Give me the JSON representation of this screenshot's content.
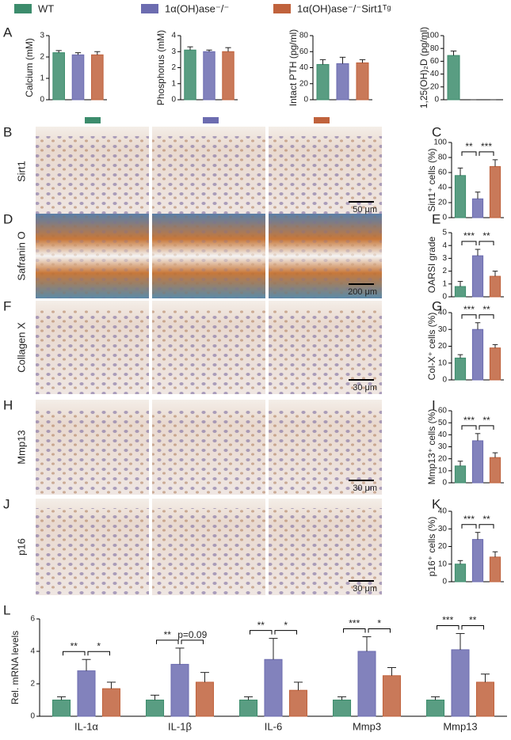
{
  "legend": [
    {
      "name": "WT",
      "color": "#3c8c6c"
    },
    {
      "name": "1α(OH)ase⁻/⁻",
      "color": "#6c6cb0"
    },
    {
      "name": "1α(OH)ase⁻/⁻Sirt1ᵀᵍ",
      "color": "#c0623c"
    }
  ],
  "panels": [
    "A",
    "B",
    "C",
    "D",
    "E",
    "F",
    "G",
    "H",
    "I",
    "J",
    "K",
    "L"
  ],
  "image_rows": [
    {
      "label": "Sirt1",
      "scale": "50 μm"
    },
    {
      "label": "Safranin O",
      "scale": "200 μm"
    },
    {
      "label": "Collagen X",
      "scale": "30 μm"
    },
    {
      "label": "Mmp13",
      "scale": "30 μm"
    },
    {
      "label": "p16",
      "scale": "30 μm"
    }
  ],
  "chart_data": [
    {
      "type": "bar",
      "ylabel": "Calcium (mM)",
      "ylim": [
        0,
        3
      ],
      "yticks": [
        0,
        1,
        2,
        3
      ],
      "colors": [
        "#3c8c6c",
        "#6c6cb0",
        "#c0623c"
      ],
      "values": [
        2.2,
        2.1,
        2.1
      ],
      "errors": [
        0.1,
        0.1,
        0.15
      ]
    },
    {
      "type": "bar",
      "ylabel": "Phosphorus (mM)",
      "ylim": [
        0,
        4
      ],
      "yticks": [
        0,
        1,
        2,
        3,
        4
      ],
      "colors": [
        "#3c8c6c",
        "#6c6cb0",
        "#c0623c"
      ],
      "values": [
        3.1,
        3.0,
        3.0
      ],
      "errors": [
        0.2,
        0.1,
        0.25
      ]
    },
    {
      "type": "bar",
      "ylabel": "Intact PTH (pg/ml)",
      "ylim": [
        0,
        80
      ],
      "yticks": [
        0,
        20,
        40,
        60,
        80
      ],
      "colors": [
        "#3c8c6c",
        "#6c6cb0",
        "#c0623c"
      ],
      "values": [
        44,
        45,
        46
      ],
      "errors": [
        6,
        8,
        4
      ]
    },
    {
      "type": "bar",
      "ylabel": "1,25(OH)₂D (pg/ml)",
      "ylim": [
        0,
        100
      ],
      "yticks": [
        0,
        20,
        40,
        60,
        80,
        100
      ],
      "colors": [
        "#3c8c6c",
        "#6c6cb0",
        "#c0623c"
      ],
      "values": [
        69,
        0,
        0
      ],
      "errors": [
        7,
        0,
        0
      ]
    },
    {
      "type": "bar",
      "ylabel": "Sirt1⁺ cells (%)",
      "ylim": [
        0,
        100
      ],
      "yticks": [
        0,
        20,
        40,
        60,
        80,
        100
      ],
      "colors": [
        "#3c8c6c",
        "#6c6cb0",
        "#c0623c"
      ],
      "values": [
        56,
        25,
        68
      ],
      "errors": [
        10,
        9,
        9
      ],
      "significance": [
        "**",
        "***"
      ]
    },
    {
      "type": "bar",
      "ylabel": "OARSI grade",
      "ylim": [
        0,
        5
      ],
      "yticks": [
        0,
        1,
        2,
        3,
        4,
        5
      ],
      "colors": [
        "#3c8c6c",
        "#6c6cb0",
        "#c0623c"
      ],
      "values": [
        0.8,
        3.2,
        1.6
      ],
      "errors": [
        0.4,
        0.5,
        0.4
      ],
      "significance": [
        "***",
        "**"
      ]
    },
    {
      "type": "bar",
      "ylabel": "Col-X⁺ cells (%)",
      "ylim": [
        0,
        40
      ],
      "yticks": [
        0,
        10,
        20,
        30,
        40
      ],
      "colors": [
        "#3c8c6c",
        "#6c6cb0",
        "#c0623c"
      ],
      "values": [
        13,
        30,
        19
      ],
      "errors": [
        2,
        4,
        2
      ],
      "significance": [
        "***",
        "**"
      ]
    },
    {
      "type": "bar",
      "ylabel": "Mmp13⁺ cells (%)",
      "ylim": [
        0,
        60
      ],
      "yticks": [
        0,
        10,
        20,
        30,
        40,
        50,
        60
      ],
      "colors": [
        "#3c8c6c",
        "#6c6cb0",
        "#c0623c"
      ],
      "values": [
        14,
        35,
        21
      ],
      "errors": [
        4,
        6,
        4
      ],
      "significance": [
        "***",
        "**"
      ]
    },
    {
      "type": "bar",
      "ylabel": "p16⁺ cells (%)",
      "ylim": [
        0,
        40
      ],
      "yticks": [
        0,
        10,
        20,
        30,
        40
      ],
      "colors": [
        "#3c8c6c",
        "#6c6cb0",
        "#c0623c"
      ],
      "values": [
        10,
        24,
        14
      ],
      "errors": [
        2,
        4,
        3
      ],
      "significance": [
        "***",
        "**"
      ]
    },
    {
      "type": "grouped_bar",
      "ylabel": "Rel. mRNA levels",
      "ylim": [
        0,
        6
      ],
      "yticks": [
        0,
        2,
        4,
        6
      ],
      "categories": [
        "IL-1α",
        "IL-1β",
        "IL-6",
        "Mmp3",
        "Mmp13"
      ],
      "series": [
        {
          "color": "#3c8c6c",
          "values": [
            1,
            1,
            1,
            1,
            1
          ],
          "errors": [
            0.2,
            0.3,
            0.2,
            0.2,
            0.2
          ]
        },
        {
          "color": "#6c6cb0",
          "values": [
            2.8,
            3.2,
            3.5,
            4.0,
            4.1
          ],
          "errors": [
            0.7,
            1.0,
            1.3,
            0.9,
            1.0
          ]
        },
        {
          "color": "#c0623c",
          "values": [
            1.7,
            2.1,
            1.6,
            2.5,
            2.1
          ],
          "errors": [
            0.4,
            0.6,
            0.5,
            0.5,
            0.5
          ]
        }
      ],
      "significance": [
        [
          "**",
          "*"
        ],
        [
          "**",
          "p=0.09"
        ],
        [
          "**",
          "*"
        ],
        [
          "***",
          "*"
        ],
        [
          "***",
          "**"
        ]
      ]
    }
  ]
}
